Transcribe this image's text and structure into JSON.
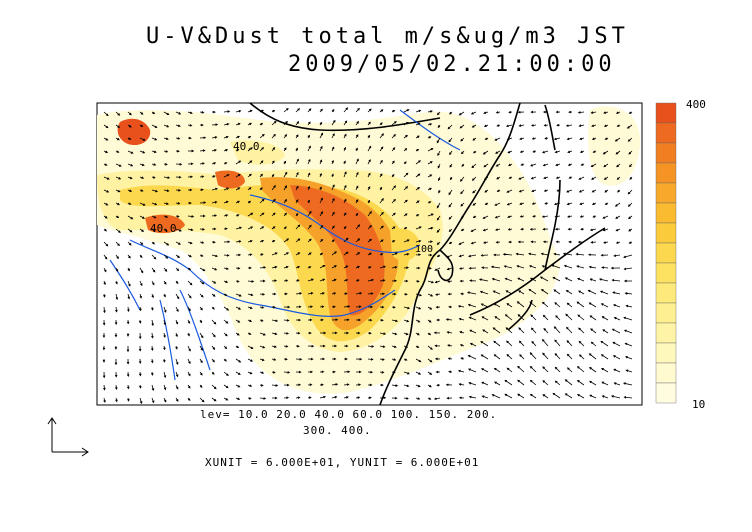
{
  "title": {
    "line1": "U-V&Dust total m/s&ug/m3 JST",
    "line2": "2009/05/02.21:00:00"
  },
  "contour_levels": {
    "line1": "lev= 10.0 20.0 40.0 60.0 100. 150. 200.",
    "line2": "300. 400."
  },
  "units_line": "XUNIT = 6.000E+01, YUNIT = 6.000E+01",
  "colorbar": {
    "max_label": "400",
    "min_label": "10",
    "colors": [
      "#e8501c",
      "#ee6a20",
      "#f27e22",
      "#f59424",
      "#f8a82a",
      "#fabb30",
      "#fbcb3c",
      "#fcd84e",
      "#fde262",
      "#feea7a",
      "#fef090",
      "#fff4a6",
      "#fff8bc",
      "#fffad0",
      "#fffce0"
    ]
  },
  "map_labels": {
    "contour_a": "40.0",
    "contour_b": "40.0",
    "contour_c": "100"
  },
  "colors": {
    "coast": "#000000",
    "rivers": "#1a5ae0",
    "frame": "#000000"
  }
}
